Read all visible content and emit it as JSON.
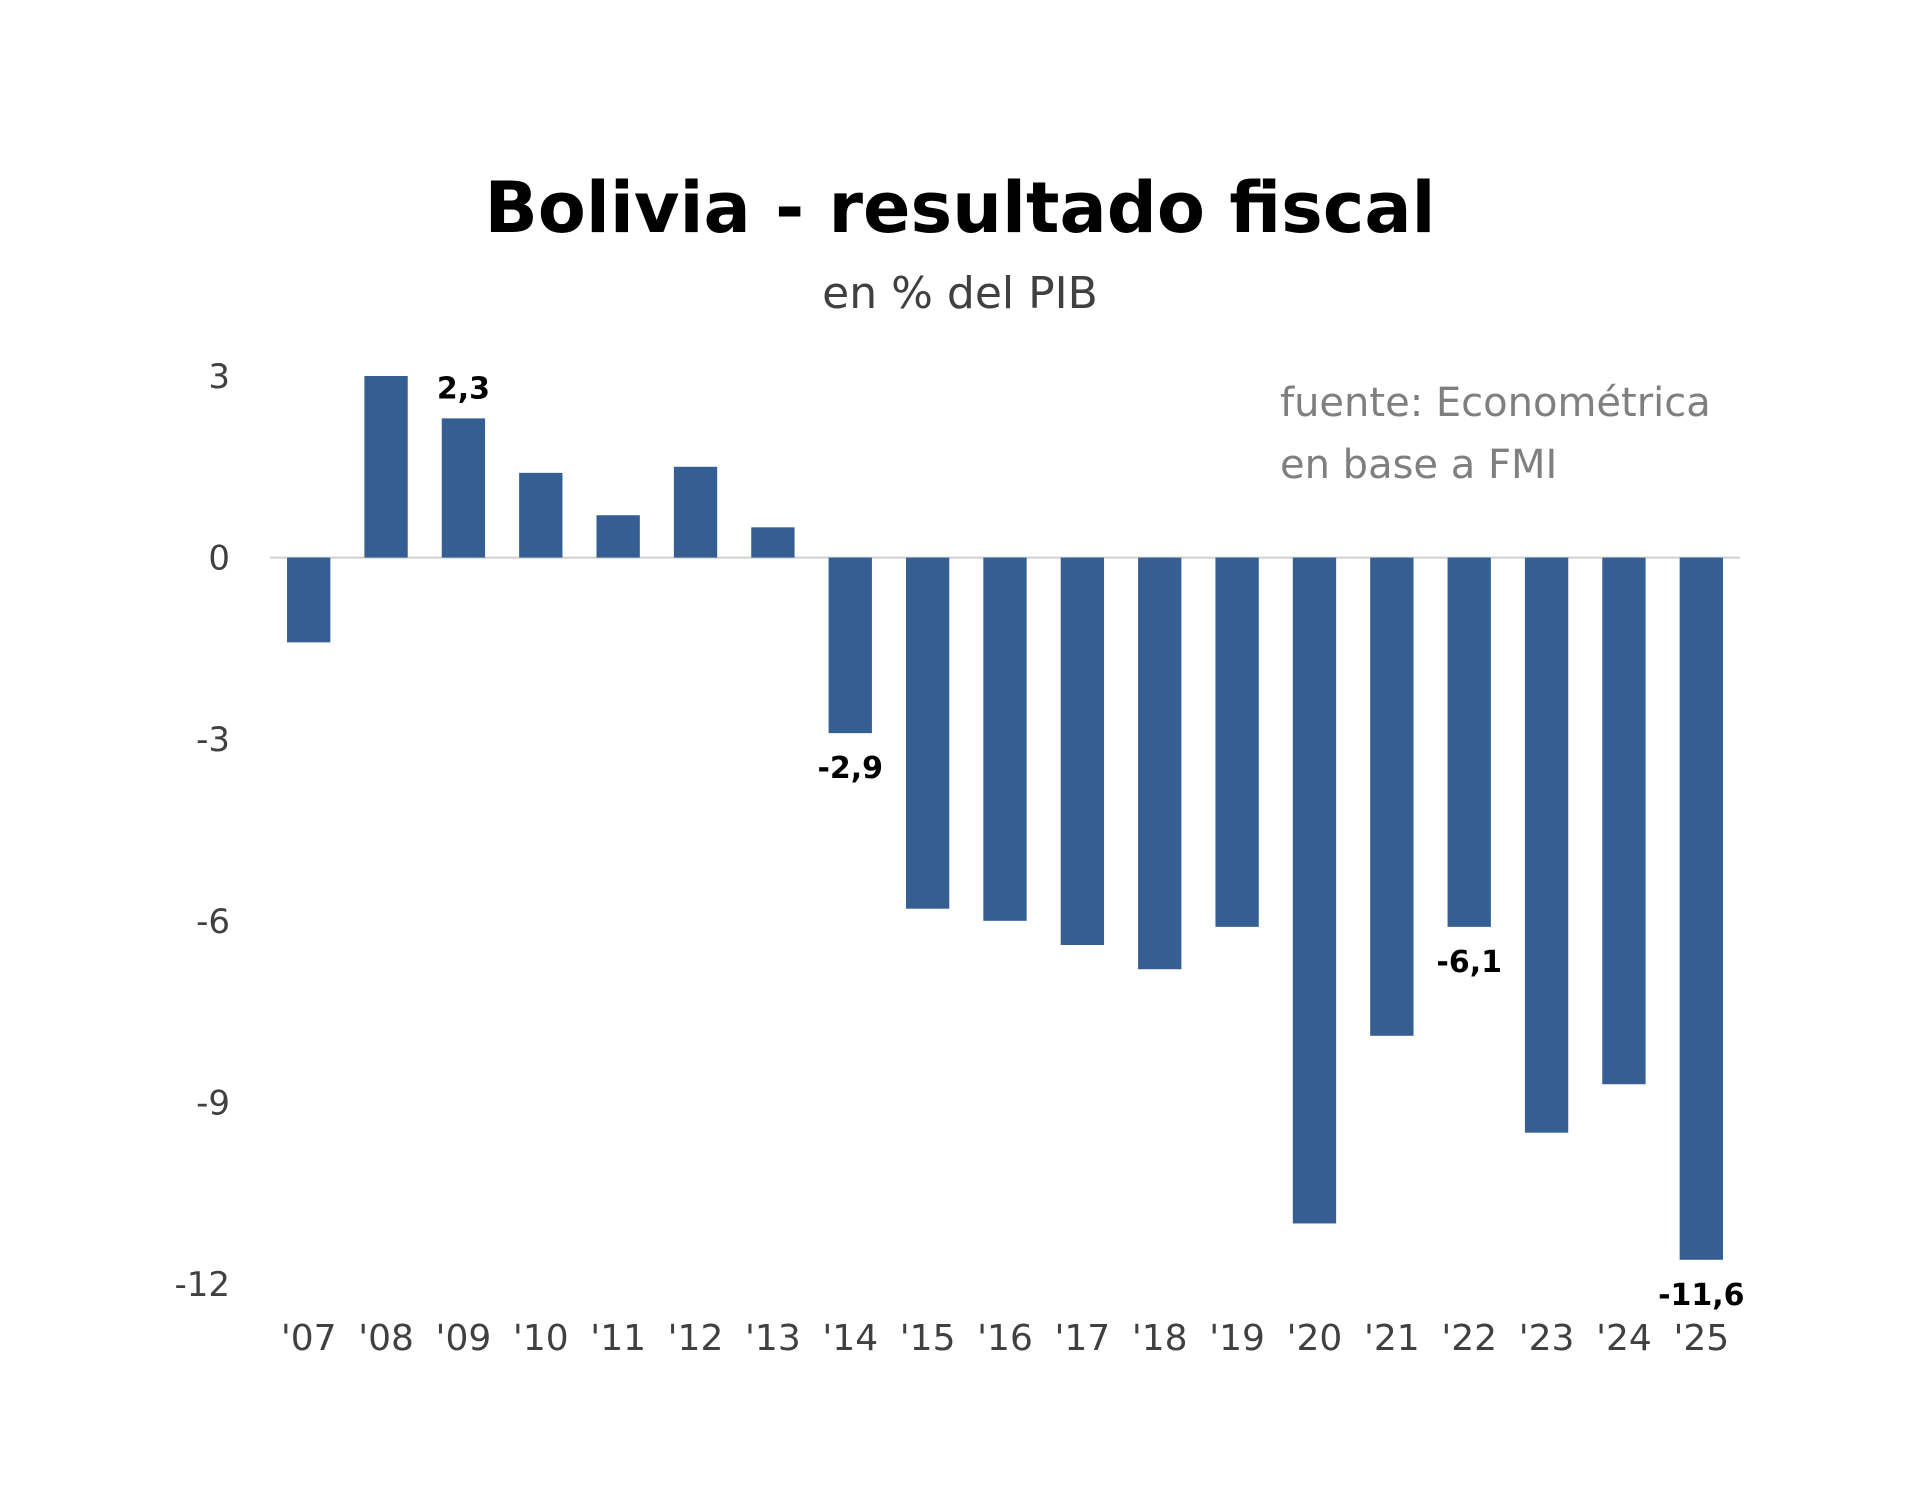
{
  "colors": {
    "bar": "#355E93",
    "zero_line": "#d0d0d0"
  },
  "source_note": [
    "fuente: Econométrica",
    "en base a FMI"
  ],
  "chart_data": {
    "type": "bar",
    "title": "Bolivia - resultado fiscal",
    "subtitle": "en % del PIB",
    "xlabel": "",
    "ylabel": "",
    "ylim": [
      -12,
      3
    ],
    "yticks": [
      3,
      0,
      -3,
      -6,
      -9,
      -12
    ],
    "grid": false,
    "legend": "none",
    "categories": [
      "'07",
      "'08",
      "'09",
      "'10",
      "'11",
      "'12",
      "'13",
      "'14",
      "'15",
      "'16",
      "'17",
      "'18",
      "'19",
      "'20",
      "'21",
      "'22",
      "'23",
      "'24",
      "'25"
    ],
    "values": [
      -1.4,
      3.0,
      2.3,
      1.4,
      0.7,
      1.5,
      0.5,
      -2.9,
      -5.8,
      -6.0,
      -6.4,
      -6.8,
      -6.1,
      -11.0,
      -7.9,
      -6.1,
      -9.5,
      -8.7,
      -11.6
    ],
    "data_labels": [
      {
        "index": 2,
        "text": "2,3"
      },
      {
        "index": 7,
        "text": "-2,9"
      },
      {
        "index": 15,
        "text": "-6,1"
      },
      {
        "index": 18,
        "text": "-11,6"
      }
    ]
  }
}
